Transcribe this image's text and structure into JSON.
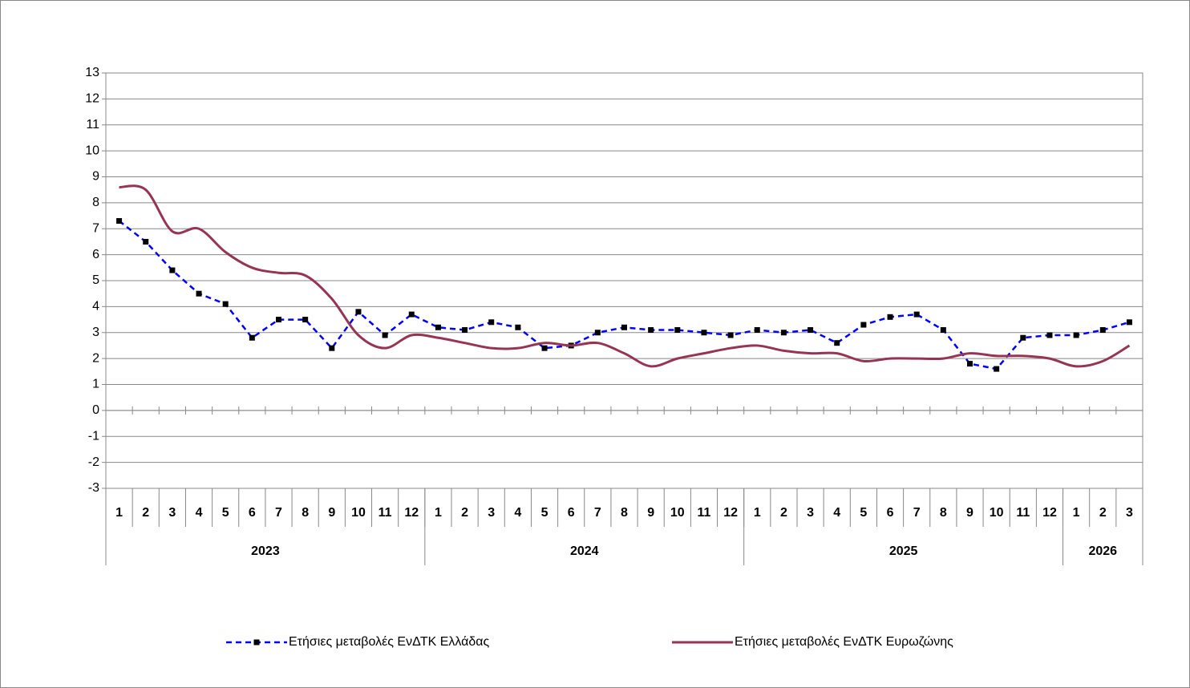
{
  "chart_data": {
    "type": "line",
    "categories": [
      "1",
      "2",
      "3",
      "4",
      "5",
      "6",
      "7",
      "8",
      "9",
      "10",
      "11",
      "12",
      "1",
      "2",
      "3",
      "4",
      "5",
      "6",
      "7",
      "8",
      "9",
      "10",
      "11",
      "12",
      "1",
      "2",
      "3",
      "4",
      "5",
      "6",
      "7",
      "8",
      "9",
      "10",
      "11",
      "12",
      "1",
      "2",
      "3"
    ],
    "year_groups": [
      {
        "label": "2023",
        "count": 12
      },
      {
        "label": "2024",
        "count": 12
      },
      {
        "label": "2025",
        "count": 12
      },
      {
        "label": "2026",
        "count": 3
      }
    ],
    "series": [
      {
        "name": "Ετήσιες μεταβολές ΕνΔΤΚ Ελλάδας",
        "color": "#0000ff",
        "dashed": true,
        "markers": true,
        "values": [
          7.3,
          6.5,
          5.4,
          4.5,
          4.1,
          2.8,
          3.5,
          3.5,
          2.4,
          3.8,
          2.9,
          3.7,
          3.2,
          3.1,
          3.4,
          3.2,
          2.4,
          2.5,
          3.0,
          3.2,
          3.1,
          3.1,
          3.0,
          2.9,
          3.1,
          3.0,
          3.1,
          2.6,
          3.3,
          3.6,
          3.7,
          3.1,
          1.8,
          1.6,
          2.8,
          2.9,
          2.9,
          3.1,
          3.4
        ]
      },
      {
        "name": "Ετήσιες μεταβολές ΕνΔΤΚ Ευρωζώνης",
        "color": "#953553",
        "dashed": false,
        "markers": false,
        "smooth": true,
        "values": [
          8.6,
          8.5,
          6.9,
          7.0,
          6.1,
          5.5,
          5.3,
          5.2,
          4.3,
          2.9,
          2.4,
          2.9,
          2.8,
          2.6,
          2.4,
          2.4,
          2.6,
          2.5,
          2.6,
          2.2,
          1.7,
          2.0,
          2.2,
          2.4,
          2.5,
          2.3,
          2.2,
          2.2,
          1.9,
          2.0,
          2.0,
          2.0,
          2.2,
          2.1,
          2.1,
          2.0,
          1.7,
          1.9,
          2.5
        ]
      }
    ],
    "ylim": [
      -3,
      13
    ],
    "yticks": [
      -3,
      -2,
      -1,
      0,
      1,
      2,
      3,
      4,
      5,
      6,
      7,
      8,
      9,
      10,
      11,
      12,
      13
    ],
    "grid": true,
    "legend": "bottom"
  }
}
